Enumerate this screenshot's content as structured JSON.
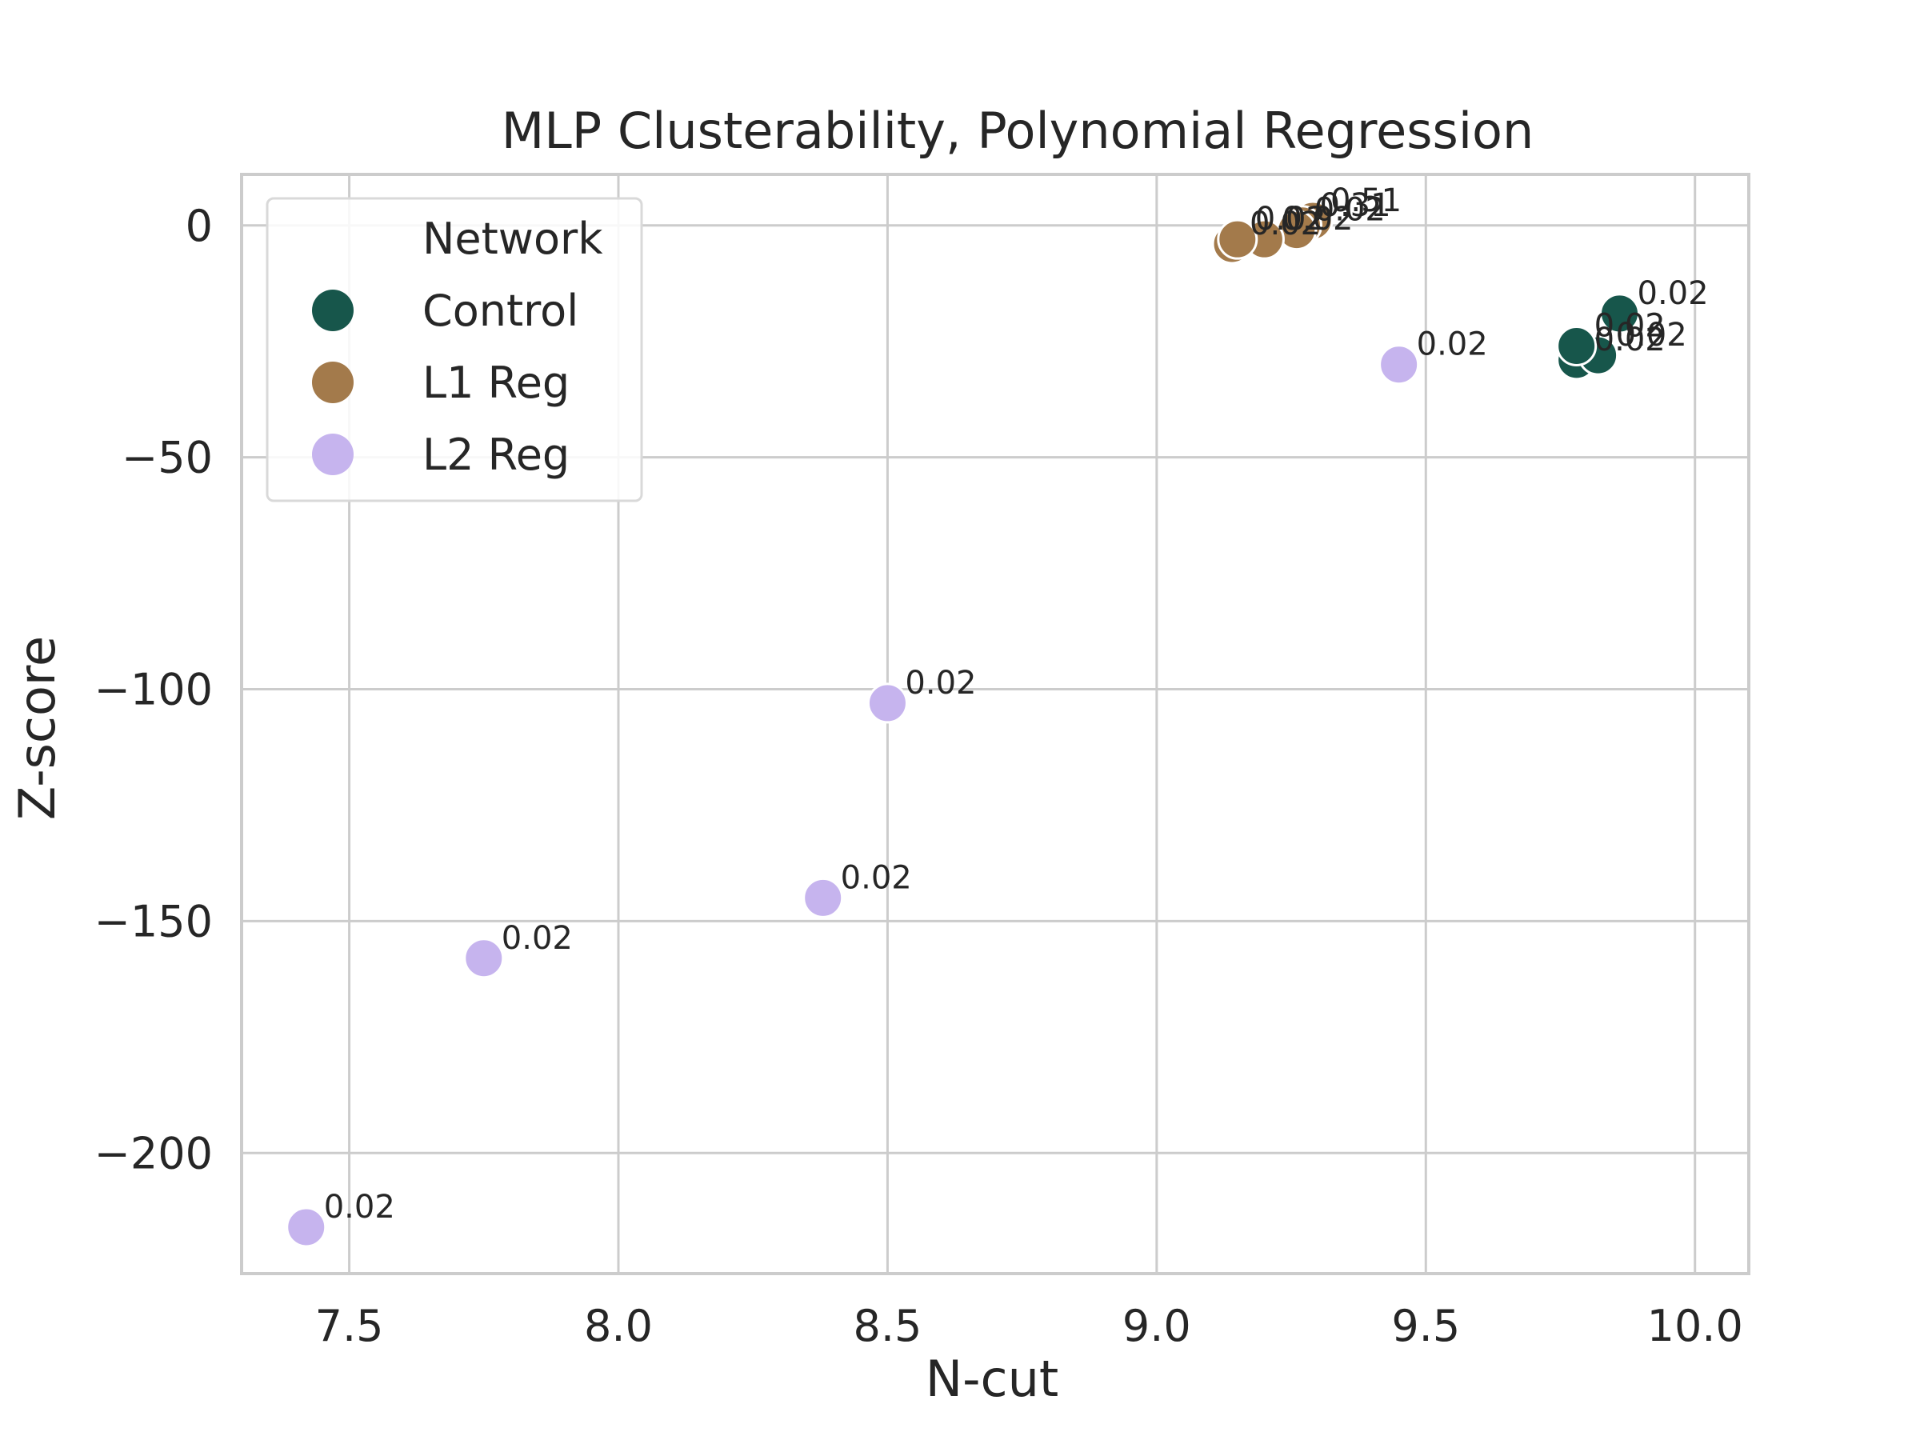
{
  "chart_data": {
    "type": "scatter",
    "title": "MLP Clusterability, Polynomial Regression",
    "xlabel": "N-cut",
    "ylabel": "Z-score",
    "xlim": [
      7.3,
      10.1
    ],
    "ylim": [
      -226,
      11
    ],
    "xticks": [
      7.5,
      8.0,
      8.5,
      9.0,
      9.5,
      10.0
    ],
    "xtick_labels": [
      "7.5",
      "8.0",
      "8.5",
      "9.0",
      "9.5",
      "10.0"
    ],
    "yticks": [
      0,
      -50,
      -100,
      -150,
      -200
    ],
    "ytick_labels": [
      "0",
      "−50",
      "−100",
      "−150",
      "−200"
    ],
    "grid": true,
    "legend": {
      "title": "Network",
      "position": "top-left",
      "entries": [
        "Control",
        "L1 Reg",
        "L2 Reg"
      ]
    },
    "series": [
      {
        "name": "Control",
        "color": "#17564b",
        "points": [
          {
            "x": 9.86,
            "y": -19,
            "label": "0.02"
          },
          {
            "x": 9.78,
            "y": -29,
            "label": "0.02"
          },
          {
            "x": 9.82,
            "y": -28,
            "label": "0.02"
          },
          {
            "x": 9.78,
            "y": -26,
            "label": "0.02"
          }
        ]
      },
      {
        "name": "L1 Reg",
        "color": "#a37a4b",
        "points": [
          {
            "x": 9.29,
            "y": 1,
            "label": "0.51"
          },
          {
            "x": 9.27,
            "y": 0,
            "label": "0.31"
          },
          {
            "x": 9.26,
            "y": -1,
            "label": "0.02"
          },
          {
            "x": 9.2,
            "y": -3,
            "label": "0.02"
          },
          {
            "x": 9.14,
            "y": -4,
            "label": "0.02"
          },
          {
            "x": 9.15,
            "y": -3,
            "label": "0.02"
          }
        ]
      },
      {
        "name": "L2 Reg",
        "color": "#c6b4ee",
        "points": [
          {
            "x": 9.45,
            "y": -30,
            "label": "0.02"
          },
          {
            "x": 8.5,
            "y": -103,
            "label": "0.02"
          },
          {
            "x": 8.38,
            "y": -145,
            "label": "0.02"
          },
          {
            "x": 7.75,
            "y": -158,
            "label": "0.02"
          },
          {
            "x": 7.42,
            "y": -216,
            "label": "0.02"
          }
        ]
      }
    ]
  }
}
